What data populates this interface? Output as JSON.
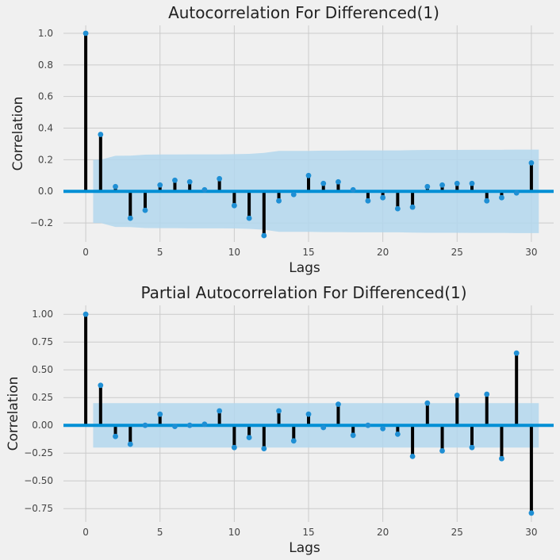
{
  "chart_data": [
    {
      "type": "stem",
      "title": "Autocorrelation For Differenced(1)",
      "xlabel": "Lags",
      "ylabel": "Correlation",
      "xlim": [
        -1.5,
        31.5
      ],
      "ylim": [
        -0.32,
        1.05
      ],
      "xticks": [
        0,
        5,
        10,
        15,
        20,
        25,
        30
      ],
      "xtick_labels": [
        "0",
        "5",
        "10",
        "15",
        "20",
        "25",
        "30"
      ],
      "yticks": [
        -0.2,
        0.0,
        0.2,
        0.4,
        0.6,
        0.8,
        1.0
      ],
      "ytick_labels": [
        "−0.2",
        "0.0",
        "0.2",
        "0.4",
        "0.6",
        "0.8",
        "1.0"
      ],
      "grid": true,
      "lags": [
        0,
        1,
        2,
        3,
        4,
        5,
        6,
        7,
        8,
        9,
        10,
        11,
        12,
        13,
        14,
        15,
        16,
        17,
        18,
        19,
        20,
        21,
        22,
        23,
        24,
        25,
        26,
        27,
        28,
        29,
        30
      ],
      "values": [
        1.0,
        0.36,
        0.03,
        -0.17,
        -0.12,
        0.04,
        0.07,
        0.06,
        0.01,
        0.08,
        -0.09,
        -0.17,
        -0.28,
        -0.06,
        -0.02,
        0.1,
        0.05,
        0.06,
        0.01,
        -0.06,
        -0.04,
        -0.11,
        -0.1,
        0.03,
        0.04,
        0.05,
        0.05,
        -0.06,
        -0.04,
        -0.01,
        0.18
      ],
      "confidence_band": {
        "x": [
          0.5,
          1,
          2,
          3,
          4,
          5,
          6,
          7,
          8,
          9,
          10,
          11,
          12,
          13,
          14,
          15,
          16,
          17,
          18,
          19,
          20,
          21,
          22,
          23,
          24,
          25,
          26,
          27,
          28,
          29,
          30,
          30.5
        ],
        "upper": [
          0.2,
          0.2,
          0.225,
          0.226,
          0.232,
          0.233,
          0.233,
          0.234,
          0.234,
          0.234,
          0.235,
          0.237,
          0.243,
          0.256,
          0.256,
          0.256,
          0.258,
          0.258,
          0.259,
          0.259,
          0.259,
          0.259,
          0.261,
          0.262,
          0.262,
          0.262,
          0.263,
          0.263,
          0.263,
          0.264,
          0.264,
          0.264
        ]
      }
    },
    {
      "type": "stem",
      "title": "Partial Autocorrelation For Differenced(1)",
      "xlabel": "Lags",
      "ylabel": "Correlation",
      "xlim": [
        -1.5,
        31.5
      ],
      "ylim": [
        -0.87,
        1.08
      ],
      "xticks": [
        0,
        5,
        10,
        15,
        20,
        25,
        30
      ],
      "xtick_labels": [
        "0",
        "5",
        "10",
        "15",
        "20",
        "25",
        "30"
      ],
      "yticks": [
        -0.75,
        -0.5,
        -0.25,
        0.0,
        0.25,
        0.5,
        0.75,
        1.0
      ],
      "ytick_labels": [
        "−0.75",
        "−0.50",
        "−0.25",
        "0.00",
        "0.25",
        "0.50",
        "0.75",
        "1.00"
      ],
      "grid": true,
      "lags": [
        0,
        1,
        2,
        3,
        4,
        5,
        6,
        7,
        8,
        9,
        10,
        11,
        12,
        13,
        14,
        15,
        16,
        17,
        18,
        19,
        20,
        21,
        22,
        23,
        24,
        25,
        26,
        27,
        28,
        29,
        30
      ],
      "values": [
        1.0,
        0.36,
        -0.1,
        -0.17,
        0.0,
        0.1,
        -0.01,
        0.0,
        0.01,
        0.13,
        -0.2,
        -0.11,
        -0.21,
        0.13,
        -0.14,
        0.1,
        -0.02,
        0.19,
        -0.09,
        0.0,
        -0.03,
        -0.08,
        -0.28,
        0.2,
        -0.23,
        0.27,
        -0.2,
        0.28,
        -0.3,
        0.65,
        -0.79
      ],
      "confidence_band": {
        "x": [
          0.5,
          30.5
        ],
        "upper": [
          0.2,
          0.2
        ]
      }
    }
  ],
  "colors": {
    "background": "#f0f0f0",
    "grid": "#cbcbcb",
    "stem": "#000000",
    "marker": "#1f8fd4",
    "zero_line": "#008fd5",
    "band": "#b3d7ed",
    "text": "#222222",
    "tick_text": "#444444"
  }
}
